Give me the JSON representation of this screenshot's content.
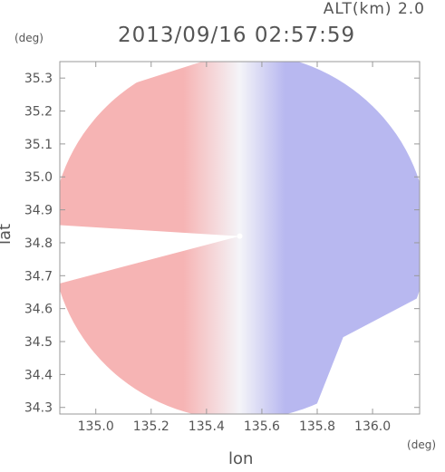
{
  "header": {
    "altitude_label": "ALT(km) 2.0",
    "timestamp": "2013/09/16 02:57:59"
  },
  "axes": {
    "y_unit": "(deg)",
    "x_unit": "(deg)",
    "x_label": "lon",
    "y_label": "lat"
  },
  "chart_data": {
    "type": "heatmap",
    "title": "2013/09/16 02:57:59",
    "subtitle": "ALT(km) 2.0",
    "xlabel": "lon",
    "ylabel": "lat",
    "x_unit": "(deg)",
    "y_unit": "(deg)",
    "xlim": [
      134.87,
      136.17
    ],
    "ylim": [
      34.28,
      35.35
    ],
    "x_ticks": [
      "135.0",
      "135.2",
      "135.4",
      "135.6",
      "135.8",
      "136.0"
    ],
    "y_ticks": [
      "34.3",
      "34.4",
      "34.5",
      "34.6",
      "34.7",
      "34.8",
      "34.9",
      "35.0",
      "35.1",
      "35.2",
      "35.3"
    ],
    "radar_center": {
      "lon": 135.52,
      "lat": 34.82
    },
    "radar_range_deg": 0.68,
    "colors": {
      "negative": "#b8b8f0",
      "zero": "#f4f4f8",
      "positive": "#f6b4b4"
    },
    "grid": false
  }
}
